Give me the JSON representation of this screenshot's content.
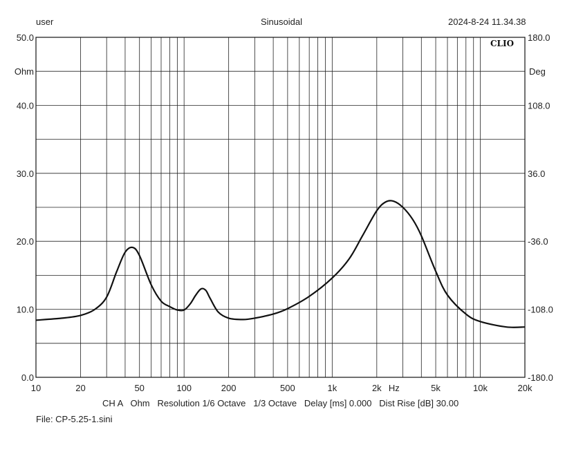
{
  "header": {
    "user": "user",
    "mode": "Sinusoidal",
    "datetime": "2024-8-24 11.34.38"
  },
  "brand": "CLIO",
  "footer": {
    "settings": "CH A   Ohm   Resolution 1/6 Octave   1/3 Octave   Delay [ms] 0.000   Dist Rise [dB] 30.00",
    "file": "File: CP-5.25-1.sini"
  },
  "chart_data": {
    "type": "line",
    "x_scale": "log",
    "xlim": [
      10,
      20000
    ],
    "ylim": [
      0,
      50
    ],
    "y2lim": [
      -180,
      180
    ],
    "grid": true,
    "ylabel": "Ohm",
    "y2label": "Deg",
    "xunit": "Hz",
    "x_ticks": [
      {
        "v": 10,
        "label": "10"
      },
      {
        "v": 20,
        "label": "20"
      },
      {
        "v": 50,
        "label": "50"
      },
      {
        "v": 100,
        "label": "100"
      },
      {
        "v": 200,
        "label": "200"
      },
      {
        "v": 500,
        "label": "500"
      },
      {
        "v": 1000,
        "label": "1k"
      },
      {
        "v": 2000,
        "label": "2k"
      },
      {
        "v": 5000,
        "label": "5k"
      },
      {
        "v": 10000,
        "label": "10k"
      },
      {
        "v": 20000,
        "label": "20k"
      }
    ],
    "y_ticks": [
      {
        "v": 0,
        "label": "0.0"
      },
      {
        "v": 10,
        "label": "10.0"
      },
      {
        "v": 20,
        "label": "20.0"
      },
      {
        "v": 30,
        "label": "30.0"
      },
      {
        "v": 40,
        "label": "40.0"
      },
      {
        "v": 50,
        "label": "50.0"
      }
    ],
    "y2_ticks": [
      {
        "v": -180,
        "label": "-180.0"
      },
      {
        "v": -108,
        "label": "-108.0"
      },
      {
        "v": -36,
        "label": "-36.0"
      },
      {
        "v": 36,
        "label": "36.0"
      },
      {
        "v": 108,
        "label": "108.0"
      },
      {
        "v": 180,
        "label": "180.0"
      }
    ],
    "series": [
      {
        "color": "#111111",
        "x": [
          10,
          15,
          20,
          25,
          30,
          35,
          40,
          45,
          50,
          60,
          70,
          80,
          90,
          100,
          110,
          120,
          130,
          140,
          150,
          170,
          200,
          250,
          300,
          400,
          500,
          700,
          1000,
          1300,
          1600,
          2000,
          2300,
          2600,
          3000,
          3500,
          4000,
          5000,
          6000,
          8000,
          10000,
          15000,
          20000
        ],
        "y": [
          8.4,
          8.7,
          9.1,
          10.0,
          11.8,
          15.5,
          18.4,
          19.1,
          17.9,
          13.6,
          11.2,
          10.4,
          9.9,
          9.9,
          10.8,
          12.1,
          13.0,
          12.8,
          11.6,
          9.6,
          8.7,
          8.5,
          8.7,
          9.3,
          10.1,
          11.9,
          14.6,
          17.4,
          20.8,
          24.5,
          25.8,
          25.9,
          25.0,
          23.2,
          20.8,
          15.6,
          12.1,
          9.3,
          8.2,
          7.4,
          7.4
        ]
      }
    ]
  }
}
